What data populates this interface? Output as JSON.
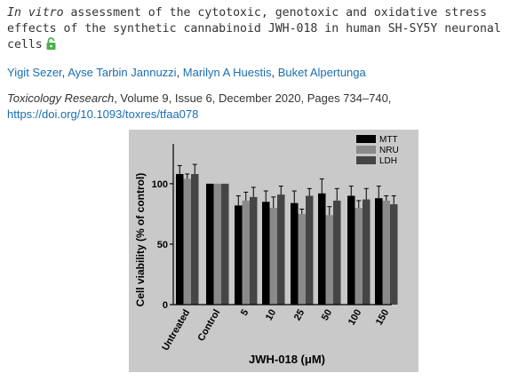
{
  "article": {
    "title_italic": "In vitro",
    "title_rest": " assessment of the cytotoxic, genotoxic and oxidative stress effects of the synthetic cannabinoid JWH-018 in human SH-SY5Y neuronal cells",
    "authors": [
      "Yigit Sezer",
      "Ayse Tarbin Jannuzzi",
      "Marilyn A Huestis",
      "Buket Alpertunga"
    ],
    "journal": "Toxicology Research",
    "details": ", Volume 9, Issue 6, December 2020, Pages 734–740,",
    "doi": "https://doi.org/10.1093/toxres/tfaa078",
    "lock_color": "#4caf50",
    "link_color": "#1a6fb0"
  },
  "chart_data": {
    "type": "bar",
    "xlabel": "JWH-018 (μM)",
    "ylabel": "Cell viability (% of control)",
    "ylim": [
      0,
      130
    ],
    "yticks": [
      0,
      50,
      100
    ],
    "ytick_labels": [
      "0",
      "50",
      "100"
    ],
    "categories": [
      "Untreated",
      "Control",
      "5",
      "10",
      "25",
      "50",
      "100",
      "150"
    ],
    "legend_position": "top-right",
    "series": [
      {
        "name": "MTT",
        "color": "#000000",
        "values": [
          108,
          100,
          82,
          85,
          84,
          92,
          90,
          88
        ],
        "errors": [
          7,
          0,
          8,
          9,
          10,
          12,
          8,
          10
        ]
      },
      {
        "name": "NRU",
        "color": "#8a8a8a",
        "values": [
          104,
          100,
          86,
          80,
          75,
          74,
          80,
          86
        ],
        "errors": [
          4,
          0,
          7,
          9,
          4,
          7,
          6,
          4
        ]
      },
      {
        "name": "LDH",
        "color": "#454545",
        "values": [
          108,
          100,
          89,
          91,
          90,
          86,
          87,
          83
        ],
        "errors": [
          8,
          0,
          8,
          7,
          6,
          10,
          9,
          7
        ]
      }
    ]
  }
}
